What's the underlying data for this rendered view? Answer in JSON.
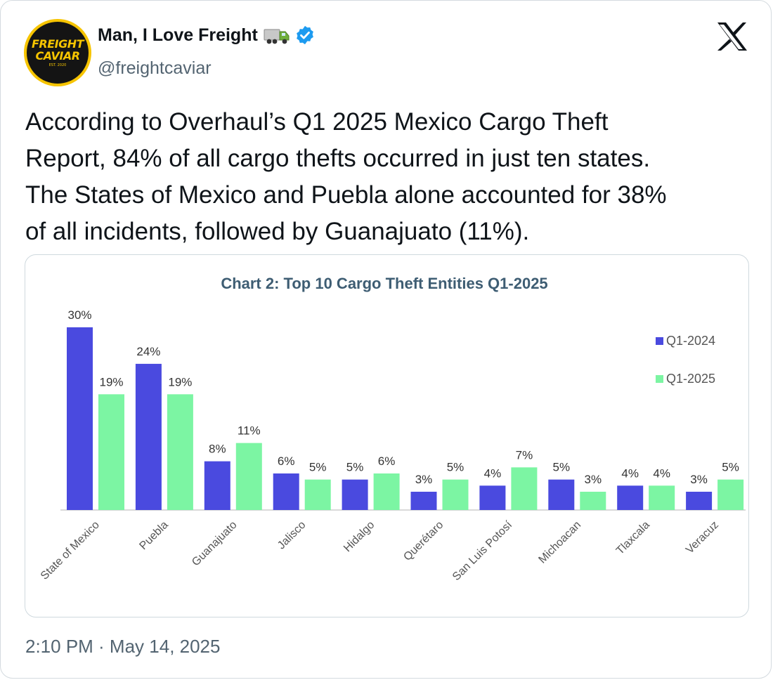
{
  "author": {
    "name": "Man, I Love Freight",
    "handle": "@freightcaviar",
    "avatar_text_line1": "FREIGHT",
    "avatar_text_line2": "CAVIAR",
    "avatar_text_line3": "EST. 2020",
    "emoji_icon": "truck-icon",
    "verified_icon": "verified-badge-icon"
  },
  "platform_icon": "x-logo-icon",
  "tweet": {
    "lines": [
      "According to Overhaul’s Q1 2025 Mexico Cargo Theft",
      "Report, 84% of all cargo thefts occurred in just ten states.",
      "The States of Mexico and Puebla alone accounted for 38%",
      "of all incidents, followed by Guanajuato (11%)."
    ]
  },
  "timestamp": "2:10 PM · May 14, 2025",
  "colors": {
    "series_2024": "#4a4adf",
    "series_2025": "#7cf5a3",
    "chart_title": "#3e5d73",
    "avatar_yellow": "#f6c400",
    "verified_blue": "#1d9bf0"
  },
  "chart_data": {
    "type": "bar",
    "title": "Chart 2: Top 10 Cargo Theft Entities Q1-2025",
    "categories": [
      "State of Mexico",
      "Puebla",
      "Guanajuato",
      "Jalisco",
      "Hidalgo",
      "Querétaro",
      "San Luis Potosí",
      "Michoacan",
      "Tlaxcala",
      "Veracuz"
    ],
    "series": [
      {
        "name": "Q1-2024",
        "values": [
          30,
          24,
          8,
          6,
          5,
          3,
          4,
          5,
          4,
          3
        ],
        "labels": [
          "30%",
          "24%",
          "8%",
          "6%",
          "5%",
          "3%",
          "4%",
          "5%",
          "4%",
          "3%"
        ]
      },
      {
        "name": "Q1-2025",
        "values": [
          19,
          19,
          11,
          5,
          6,
          5,
          7,
          3,
          4,
          5
        ],
        "labels": [
          "19%",
          "19%",
          "11%",
          "5%",
          "6%",
          "5%",
          "7%",
          "3%",
          "4%",
          "5%"
        ]
      }
    ],
    "ylim": [
      0,
      30
    ],
    "grid": false,
    "legend": "top-right",
    "xlabel": "",
    "ylabel": ""
  }
}
